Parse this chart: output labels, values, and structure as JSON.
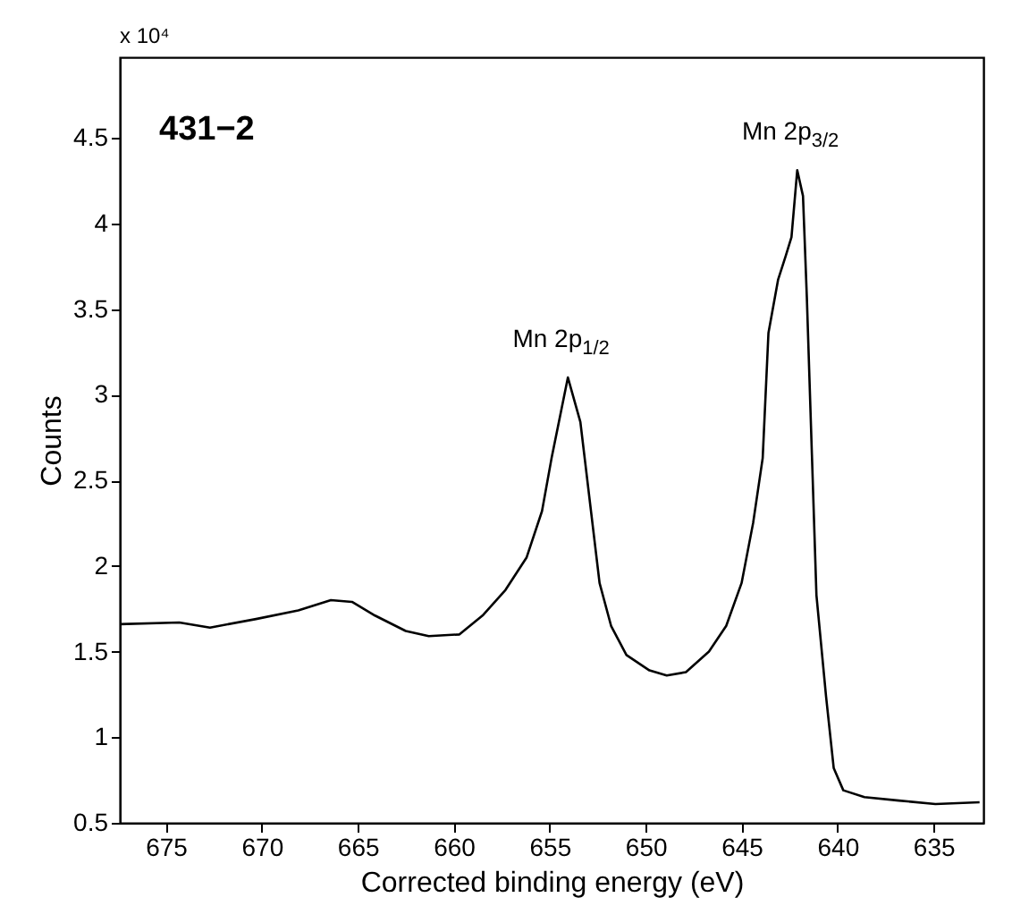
{
  "chart_data": {
    "type": "line",
    "xlabel": "Corrected binding energy (eV)",
    "ylabel": "Counts",
    "x": [
      677.4,
      674.3,
      672.7,
      670.3,
      668.1,
      666.4,
      665.3,
      664.1,
      662.5,
      661.3,
      659.7,
      658.5,
      657.3,
      656.2,
      655.4,
      654.9,
      654.05,
      653.4,
      652.4,
      651.8,
      651.0,
      649.8,
      648.9,
      647.9,
      646.7,
      645.8,
      645.0,
      644.4,
      643.9,
      643.6,
      643.1,
      642.7,
      642.4,
      642.1,
      641.8,
      641.6,
      641.1,
      640.6,
      640.2,
      639.7,
      638.6,
      636.8,
      634.9,
      632.6
    ],
    "series": [
      {
        "color": "#000000",
        "values": [
          1.66,
          1.67,
          1.64,
          1.69,
          1.74,
          1.8,
          1.79,
          1.71,
          1.62,
          1.59,
          1.6,
          1.71,
          1.86,
          2.05,
          2.32,
          2.63,
          3.1,
          2.84,
          1.9,
          1.65,
          1.48,
          1.39,
          1.36,
          1.38,
          1.5,
          1.65,
          1.9,
          2.25,
          2.63,
          3.36,
          3.67,
          3.81,
          3.92,
          4.31,
          4.16,
          3.57,
          1.83,
          1.24,
          0.82,
          0.69,
          0.65,
          0.63,
          0.61,
          0.62
        ]
      }
    ],
    "xlim": [
      677.4,
      632.4
    ],
    "xticks": [
      675,
      670,
      665,
      660,
      655,
      650,
      645,
      640,
      635
    ],
    "ylim": [
      0.5,
      4.97
    ],
    "yticks": [
      0.5,
      1,
      1.5,
      2,
      2.5,
      3,
      3.5,
      4,
      4.5
    ],
    "grid": false,
    "marker": "none",
    "line_style": "solid",
    "annotations": [
      "x 10⁴",
      "431−2",
      {
        "text": "Mn 2p$_{1/2}$",
        "x": 654.05,
        "y": 3.1
      },
      {
        "text": "Mn 2p$_{3/2}$",
        "x": 642.1,
        "y": 4.31
      }
    ]
  }
}
